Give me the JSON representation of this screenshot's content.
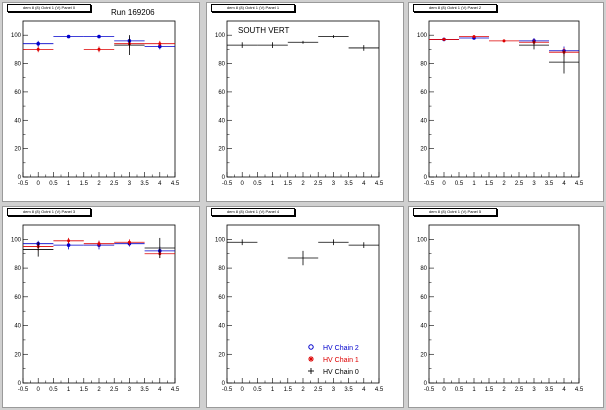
{
  "figure": {
    "run_label": "Run 169206",
    "south_label": "SOUTH VERT"
  },
  "legend": [
    {
      "label": "HV Chain 2",
      "color": "#0000cc",
      "marker": "circle"
    },
    {
      "label": "HV Chain 1",
      "color": "#dd0000",
      "marker": "star"
    },
    {
      "label": "HV Chain 0",
      "color": "#000000",
      "marker": "plus"
    }
  ],
  "colors": {
    "chain2": "#0000cc",
    "chain1": "#dd0000",
    "chain0": "#000000"
  },
  "chart_data": [
    {
      "type": "scatter",
      "title": "dem 8 (8) Octnt 1 (V) Panel 0",
      "xlim": [
        -0.5,
        4.5
      ],
      "ylim": [
        0,
        110
      ],
      "xticks": [
        -0.5,
        0,
        0.5,
        1,
        1.5,
        2,
        2.5,
        3,
        3.5,
        4,
        4.5
      ],
      "yticks": [
        0,
        20,
        40,
        60,
        80,
        100
      ],
      "series": [
        {
          "key": "chain2",
          "points": [
            {
              "x": 0,
              "y": 94,
              "ey": 2
            },
            {
              "x": 1,
              "y": 99,
              "ey": 1
            },
            {
              "x": 2,
              "y": 99,
              "ey": 1
            },
            {
              "x": 3,
              "y": 96,
              "ey": 3
            },
            {
              "x": 4,
              "y": 92,
              "ey": 2
            }
          ]
        },
        {
          "key": "chain1",
          "points": [
            {
              "x": 0,
              "y": 90,
              "ey": 2
            },
            {
              "x": 2,
              "y": 90,
              "ey": 2
            },
            {
              "x": 3,
              "y": 94,
              "ey": 3
            },
            {
              "x": 4,
              "y": 94,
              "ey": 2
            }
          ]
        },
        {
          "key": "chain0",
          "points": [
            {
              "x": 3,
              "y": 93,
              "ey": 7
            }
          ]
        }
      ]
    },
    {
      "type": "scatter",
      "title": "dem 8 (8) Octnt 1 (V) Panel 1",
      "xlim": [
        -0.5,
        4.5
      ],
      "ylim": [
        0,
        110
      ],
      "xticks": [
        -0.5,
        0,
        0.5,
        1,
        1.5,
        2,
        2.5,
        3,
        3.5,
        4,
        4.5
      ],
      "yticks": [
        0,
        20,
        40,
        60,
        80,
        100
      ],
      "series": [
        {
          "key": "chain0",
          "points": [
            {
              "x": 0,
              "y": 93,
              "ey": 2
            },
            {
              "x": 1,
              "y": 93,
              "ey": 2
            },
            {
              "x": 2,
              "y": 95,
              "ey": 1
            },
            {
              "x": 3,
              "y": 99,
              "ey": 1
            },
            {
              "x": 4,
              "y": 91,
              "ey": 2
            }
          ]
        }
      ]
    },
    {
      "type": "scatter",
      "title": "dem 8 (8) Octnt 1 (V) Panel 2",
      "xlim": [
        -0.5,
        4.5
      ],
      "ylim": [
        0,
        110
      ],
      "xticks": [
        -0.5,
        0,
        0.5,
        1,
        1.5,
        2,
        2.5,
        3,
        3.5,
        4,
        4.5
      ],
      "yticks": [
        0,
        20,
        40,
        60,
        80,
        100
      ],
      "series": [
        {
          "key": "chain2",
          "points": [
            {
              "x": 0,
              "y": 97,
              "ey": 1
            },
            {
              "x": 1,
              "y": 98,
              "ey": 1
            },
            {
              "x": 3,
              "y": 96,
              "ey": 2
            },
            {
              "x": 4,
              "y": 89,
              "ey": 3
            }
          ]
        },
        {
          "key": "chain1",
          "points": [
            {
              "x": 0,
              "y": 97,
              "ey": 1
            },
            {
              "x": 1,
              "y": 99,
              "ey": 1
            },
            {
              "x": 2,
              "y": 96,
              "ey": 1
            },
            {
              "x": 3,
              "y": 95,
              "ey": 2
            },
            {
              "x": 4,
              "y": 88,
              "ey": 3
            }
          ]
        },
        {
          "key": "chain0",
          "points": [
            {
              "x": 3,
              "y": 93,
              "ey": 3
            },
            {
              "x": 4,
              "y": 81,
              "ey": 8
            }
          ]
        }
      ]
    },
    {
      "type": "scatter",
      "title": "dem 8 (8) Octnt 1 (V) Panel 3",
      "xlim": [
        -0.5,
        4.5
      ],
      "ylim": [
        0,
        110
      ],
      "xticks": [
        -0.5,
        0,
        0.5,
        1,
        1.5,
        2,
        2.5,
        3,
        3.5,
        4,
        4.5
      ],
      "yticks": [
        0,
        20,
        40,
        60,
        80,
        100
      ],
      "series": [
        {
          "key": "chain2",
          "points": [
            {
              "x": 0,
              "y": 97,
              "ey": 2
            },
            {
              "x": 1,
              "y": 96,
              "ey": 3
            },
            {
              "x": 2,
              "y": 96,
              "ey": 3
            },
            {
              "x": 3,
              "y": 97,
              "ey": 2
            },
            {
              "x": 4,
              "y": 92,
              "ey": 3
            }
          ]
        },
        {
          "key": "chain1",
          "points": [
            {
              "x": 0,
              "y": 95,
              "ey": 3
            },
            {
              "x": 1,
              "y": 99,
              "ey": 2
            },
            {
              "x": 2,
              "y": 97,
              "ey": 2
            },
            {
              "x": 3,
              "y": 98,
              "ey": 2
            },
            {
              "x": 4,
              "y": 90,
              "ey": 3
            }
          ]
        },
        {
          "key": "chain0",
          "points": [
            {
              "x": 0,
              "y": 93,
              "ey": 5
            },
            {
              "x": 4,
              "y": 94,
              "ey": 7
            }
          ]
        }
      ]
    },
    {
      "type": "scatter",
      "title": "dem 8 (8) Octnt 1 (V) Panel 4",
      "xlim": [
        -0.5,
        4.5
      ],
      "ylim": [
        0,
        110
      ],
      "xticks": [
        -0.5,
        0,
        0.5,
        1,
        1.5,
        2,
        2.5,
        3,
        3.5,
        4,
        4.5
      ],
      "yticks": [
        0,
        20,
        40,
        60,
        80,
        100
      ],
      "series": [
        {
          "key": "chain0",
          "points": [
            {
              "x": 0,
              "y": 98,
              "ey": 2
            },
            {
              "x": 2,
              "y": 87,
              "ey": 5
            },
            {
              "x": 3,
              "y": 98,
              "ey": 2
            },
            {
              "x": 4,
              "y": 96,
              "ey": 2
            }
          ]
        }
      ]
    },
    {
      "type": "scatter",
      "title": "dem 8 (8) Octnt 1 (V) Panel 5",
      "xlim": [
        -0.5,
        4.5
      ],
      "ylim": [
        0,
        110
      ],
      "xticks": [
        -0.5,
        0,
        0.5,
        1,
        1.5,
        2,
        2.5,
        3,
        3.5,
        4,
        4.5
      ],
      "yticks": [
        0,
        20,
        40,
        60,
        80,
        100
      ],
      "series": []
    }
  ]
}
